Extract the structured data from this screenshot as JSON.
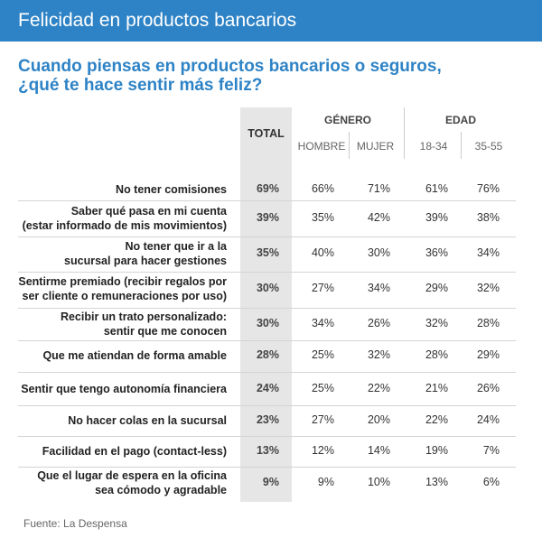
{
  "header": {
    "title": "Felicidad en productos bancarios"
  },
  "subtitle": {
    "line1": "Cuando piensas en productos bancarios o seguros,",
    "line2": "¿qué te hace sentir más feliz?"
  },
  "columns": {
    "total": "TOTAL",
    "genero": "GÉNERO",
    "edad": "EDAD",
    "hombre": "HOMBRE",
    "mujer": "MUJER",
    "age_1": "18-34",
    "age_2": "35-55"
  },
  "chart_data": {
    "type": "table",
    "columns": [
      "TOTAL",
      "HOMBRE",
      "MUJER",
      "18-34",
      "35-55"
    ],
    "column_groups": [
      {
        "name": "GÉNERO",
        "columns": [
          "HOMBRE",
          "MUJER"
        ]
      },
      {
        "name": "EDAD",
        "columns": [
          "18-34",
          "35-55"
        ]
      }
    ],
    "rows": [
      {
        "label": [
          "No tener comisiones"
        ],
        "values": [
          "69%",
          "66%",
          "71%",
          "61%",
          "76%"
        ]
      },
      {
        "label": [
          "Saber qué pasa en mi cuenta",
          "(estar informado de mis movimientos)"
        ],
        "values": [
          "39%",
          "35%",
          "42%",
          "39%",
          "38%"
        ]
      },
      {
        "label": [
          "No tener que ir a la",
          "sucursal para hacer gestiones"
        ],
        "values": [
          "35%",
          "40%",
          "30%",
          "36%",
          "34%"
        ]
      },
      {
        "label": [
          "Sentirme premiado (recibir regalos por",
          "ser cliente o remuneraciones por uso)"
        ],
        "values": [
          "30%",
          "27%",
          "34%",
          "29%",
          "32%"
        ]
      },
      {
        "label": [
          "Recibir un trato personalizado:",
          "sentir que me conocen"
        ],
        "values": [
          "30%",
          "34%",
          "26%",
          "32%",
          "28%"
        ]
      },
      {
        "label": [
          "Que me atiendan de forma amable"
        ],
        "values": [
          "28%",
          "25%",
          "32%",
          "28%",
          "29%"
        ]
      },
      {
        "label": [
          "Sentir que tengo autonomía financiera"
        ],
        "values": [
          "24%",
          "25%",
          "22%",
          "21%",
          "26%"
        ]
      },
      {
        "label": [
          "No hacer colas en la sucursal"
        ],
        "values": [
          "23%",
          "27%",
          "20%",
          "22%",
          "24%"
        ]
      },
      {
        "label": [
          "Facilidad en el pago (contact-less)"
        ],
        "values": [
          "13%",
          "12%",
          "14%",
          "19%",
          "7%"
        ]
      },
      {
        "label": [
          "Que el lugar de espera en la oficina",
          "sea  cómodo y agradable"
        ],
        "values": [
          "9%",
          "9%",
          "10%",
          "13%",
          "6%"
        ]
      }
    ]
  },
  "source": "Fuente: La Despensa",
  "colors": {
    "header_bg": "#2e83c6",
    "subtitle": "#2e83c6",
    "total_band": "#e6e6e6"
  }
}
